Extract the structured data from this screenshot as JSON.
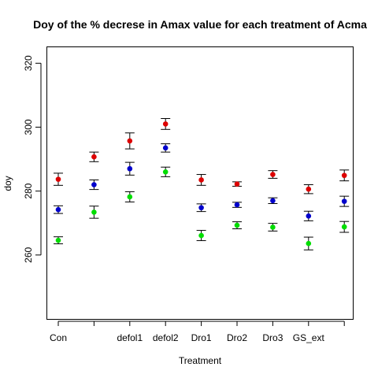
{
  "chart_data": {
    "type": "scatter",
    "title": "Doy of the % decrese in Amax value for each treatment of Acma",
    "xlabel": "Treatment",
    "ylabel": "doy",
    "ylim": [
      240,
      325
    ],
    "y_ticks": [
      260,
      280,
      300,
      320
    ],
    "categories": [
      "Con",
      "",
      "defol1",
      "defol2",
      "Dro1",
      "Dro2",
      "Dro3",
      "GS_ext",
      ""
    ],
    "grid": false,
    "legend": "none",
    "series": [
      {
        "color": "#dd0000",
        "values": [
          283.7,
          290.7,
          295.7,
          301.0,
          283.5,
          282.2,
          285.2,
          280.6,
          284.9
        ],
        "lower": [
          281.8,
          289.2,
          293.2,
          299.3,
          281.8,
          281.5,
          284.0,
          279.2,
          283.2
        ],
        "upper": [
          285.6,
          292.2,
          298.2,
          302.7,
          285.2,
          282.9,
          286.4,
          282.0,
          286.6
        ]
      },
      {
        "color": "#0000cc",
        "values": [
          274.2,
          282.0,
          287.0,
          293.5,
          274.8,
          275.7,
          277.0,
          272.2,
          276.8
        ],
        "lower": [
          273.0,
          280.5,
          285.0,
          292.2,
          273.6,
          274.9,
          276.1,
          270.7,
          275.2
        ],
        "upper": [
          275.4,
          283.5,
          289.0,
          294.8,
          276.0,
          276.5,
          277.9,
          273.7,
          278.4
        ]
      },
      {
        "color": "#00dd00",
        "values": [
          264.6,
          273.4,
          278.2,
          286.0,
          266.1,
          269.3,
          268.7,
          263.6,
          268.8
        ],
        "lower": [
          263.5,
          271.5,
          276.6,
          284.5,
          264.5,
          268.2,
          267.5,
          261.6,
          267.1
        ],
        "upper": [
          265.7,
          275.3,
          279.8,
          287.5,
          267.7,
          270.4,
          269.9,
          265.6,
          270.5
        ]
      }
    ]
  }
}
